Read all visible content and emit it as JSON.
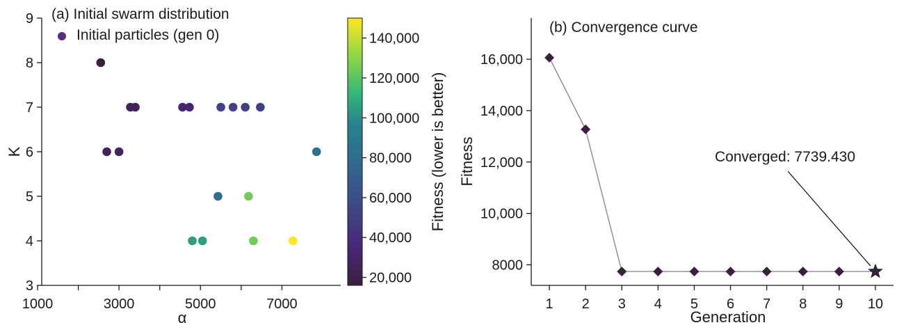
{
  "chart_data": [
    {
      "type": "scatter",
      "title": "(a) Initial swarm distribution",
      "xlabel": "α",
      "ylabel": "K",
      "xlim": [
        1000,
        8000
      ],
      "ylim": [
        3,
        9
      ],
      "x_ticks": [
        1000,
        3000,
        5000,
        7000
      ],
      "x_tick_labels": [
        "1000",
        "3000",
        "5000",
        "7000"
      ],
      "y_ticks": [
        3,
        4,
        5,
        6,
        7,
        8,
        9
      ],
      "y_tick_labels": [
        "3",
        "4",
        "5",
        "6",
        "7",
        "8",
        "9"
      ],
      "legend": {
        "label": "Initial particles (gen 0)",
        "placement": "top-left",
        "color": "#5b2a86"
      },
      "colorbar": {
        "label": "Fitness (lower is better)",
        "min": 16000,
        "max": 150000,
        "ticks": [
          20000,
          40000,
          60000,
          80000,
          100000,
          120000,
          140000
        ],
        "tick_labels": [
          "20,000",
          "40,000",
          "60,000",
          "80,000",
          "100,000",
          "120,000",
          "140,000"
        ],
        "colormap": "viridis"
      },
      "points": [
        {
          "x": 2550,
          "y": 8,
          "fitness": 16000
        },
        {
          "x": 3280,
          "y": 7,
          "fitness": 25000
        },
        {
          "x": 3400,
          "y": 7,
          "fitness": 25000
        },
        {
          "x": 4560,
          "y": 7,
          "fitness": 33000
        },
        {
          "x": 4730,
          "y": 7,
          "fitness": 33000
        },
        {
          "x": 5500,
          "y": 7,
          "fitness": 52000
        },
        {
          "x": 5800,
          "y": 7,
          "fitness": 52000
        },
        {
          "x": 6100,
          "y": 7,
          "fitness": 52000
        },
        {
          "x": 6470,
          "y": 7,
          "fitness": 52000
        },
        {
          "x": 2700,
          "y": 6,
          "fitness": 27000
        },
        {
          "x": 3000,
          "y": 6,
          "fitness": 27000
        },
        {
          "x": 7850,
          "y": 6,
          "fitness": 83000
        },
        {
          "x": 5430,
          "y": 5,
          "fitness": 80000
        },
        {
          "x": 6180,
          "y": 5,
          "fitness": 125000
        },
        {
          "x": 4800,
          "y": 4,
          "fitness": 105000
        },
        {
          "x": 5050,
          "y": 4,
          "fitness": 105000
        },
        {
          "x": 6300,
          "y": 4,
          "fitness": 125000
        },
        {
          "x": 7270,
          "y": 4,
          "fitness": 150000
        }
      ],
      "grid": false
    },
    {
      "type": "line",
      "title": "(b) Convergence curve",
      "xlabel": "Generation",
      "ylabel": "Fitness",
      "xlim": [
        0.5,
        10.5
      ],
      "ylim": [
        7200,
        17600
      ],
      "x": [
        1,
        2,
        3,
        4,
        5,
        6,
        7,
        8,
        9,
        10
      ],
      "x_tick_labels": [
        "1",
        "2",
        "3",
        "4",
        "5",
        "6",
        "7",
        "8",
        "9",
        "10"
      ],
      "y_ticks": [
        8000,
        10000,
        12000,
        14000,
        16000
      ],
      "y_tick_labels": [
        "8000",
        "10,000",
        "12,000",
        "14,000",
        "16,000"
      ],
      "values": [
        16060,
        13270,
        7739.43,
        7739.43,
        7739.43,
        7739.43,
        7739.43,
        7739.43,
        7739.43,
        7739.43
      ],
      "marker_color": "#3b1f3e",
      "line_color": "#888888",
      "annotation": {
        "text": "Converged: 7739.430",
        "target_x": 10,
        "target_y": 7739.43
      },
      "grid": false
    }
  ]
}
